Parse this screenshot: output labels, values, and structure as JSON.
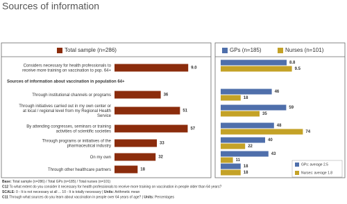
{
  "title": "Sources of information",
  "chart_data": [
    {
      "type": "bar",
      "orientation": "horizontal",
      "categories": [
        "Considers necessary for health professionals to receive more training on vaccination to pop. 64+"
      ],
      "series": [
        {
          "name": "Total sample (n=286)",
          "color": "#8b2c0c",
          "values": [
            9.0
          ],
          "value_labels": [
            "9.0"
          ]
        }
      ]
    },
    {
      "type": "bar",
      "orientation": "horizontal",
      "subtitle": "Sources of information about vaccination in population 64+",
      "categories": [
        "Through institutional channels or programs",
        "Through initiatives carried out in my own center or at local / regional level from my Regional Health Service",
        "By attending congresses, seminars or training activities of scientific societies",
        "Through programs or initiatives of the pharmaceutical industry",
        "On my own",
        "Through other healthcare partners"
      ],
      "series": [
        {
          "color": "#8b2c0c",
          "values": [
            36,
            51,
            57,
            33,
            32,
            18
          ]
        }
      ]
    },
    {
      "type": "bar",
      "orientation": "horizontal",
      "series": [
        {
          "name": "GPs (n=185)",
          "color": "#4f6fab",
          "values": [
            8.8
          ]
        },
        {
          "name": "Nurses (n=101)",
          "color": "#c4a227",
          "values": [
            9.5
          ]
        }
      ]
    },
    {
      "type": "bar",
      "orientation": "horizontal",
      "series": [
        {
          "name": "GPs: average 2.5",
          "color": "#4f6fab",
          "values": [
            46,
            59,
            48,
            40,
            43,
            18
          ]
        },
        {
          "name": "Nurses: average 1.8",
          "color": "#c4a227",
          "values": [
            18,
            35,
            74,
            22,
            11,
            18
          ]
        }
      ]
    }
  ],
  "footnotes": [
    [
      {
        "text": "Base:",
        "bold": true
      },
      {
        "text": " Total sample (n=286) / Total GPs (n=185) / Total nurses (n=101)",
        "bold": false
      }
    ],
    [
      {
        "text": "C12",
        "bold": true
      },
      {
        "text": " To what extent do you consider it necessary for health professionals to receive more training on vaccination in people older than 64 years?",
        "bold": false
      }
    ],
    [
      {
        "text": "SCALE:",
        "bold": true
      },
      {
        "text": " 0 - It is not necessary at all ... 10 - It is totally necessary | ",
        "bold": false
      },
      {
        "text": "Units:",
        "bold": true
      },
      {
        "text": " Arithmetic mean",
        "bold": false
      }
    ],
    [
      {
        "text": "C11",
        "bold": true
      },
      {
        "text": " Through what sources do you learn about vaccination in people over 64 years of age? | ",
        "bold": false
      },
      {
        "text": "Units:",
        "bold": true
      },
      {
        "text": " Percentages",
        "bold": false
      }
    ]
  ]
}
